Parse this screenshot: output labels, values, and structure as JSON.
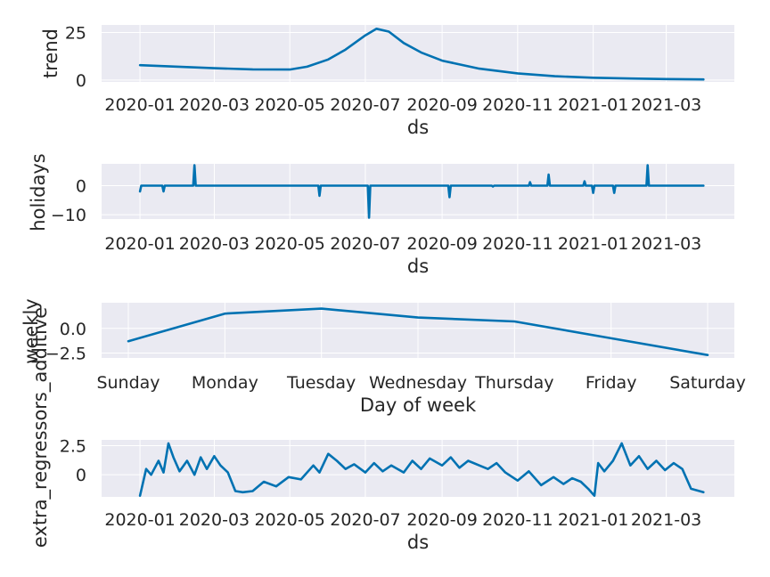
{
  "style": {
    "line_color": "#0072b2",
    "background": "#eaeaf2",
    "grid_color": "#ffffff"
  },
  "chart_data": [
    {
      "type": "line",
      "xlabel": "ds",
      "ylabel": "trend",
      "x_axis_type": "date",
      "xlim": [
        "2019-12-01",
        "2021-04-25"
      ],
      "ylim": [
        -1,
        29
      ],
      "xticks": [
        "2020-01",
        "2020-03",
        "2020-05",
        "2020-07",
        "2020-09",
        "2020-11",
        "2021-01",
        "2021-03"
      ],
      "yticks": [
        0,
        25
      ],
      "grid": true,
      "x": [
        "2020-01-01",
        "2020-02-01",
        "2020-03-01",
        "2020-04-01",
        "2020-05-01",
        "2020-05-15",
        "2020-06-01",
        "2020-06-15",
        "2020-07-01",
        "2020-07-10",
        "2020-07-20",
        "2020-08-01",
        "2020-08-15",
        "2020-09-01",
        "2020-10-01",
        "2020-11-01",
        "2020-12-01",
        "2021-01-01",
        "2021-02-01",
        "2021-03-01",
        "2021-03-31"
      ],
      "y": [
        7.8,
        7.0,
        6.2,
        5.6,
        5.5,
        7.0,
        10.8,
        16.0,
        23.5,
        27.0,
        25.5,
        19.5,
        14.5,
        10.2,
        6.0,
        3.5,
        2.0,
        1.2,
        0.8,
        0.5,
        0.3
      ]
    },
    {
      "type": "line",
      "xlabel": "ds",
      "ylabel": "holidays",
      "x_axis_type": "date",
      "xlim": [
        "2019-12-01",
        "2021-04-25"
      ],
      "ylim": [
        -11.5,
        7.5
      ],
      "xticks": [
        "2020-01",
        "2020-03",
        "2020-05",
        "2020-07",
        "2020-09",
        "2020-11",
        "2021-01",
        "2021-03"
      ],
      "yticks": [
        0,
        -10
      ],
      "ytick_labels": [
        "0",
        "−10"
      ],
      "grid": true,
      "x": [
        "2020-01-01",
        "2020-01-02",
        "2020-01-03",
        "2020-01-19",
        "2020-01-20",
        "2020-01-21",
        "2020-02-13",
        "2020-02-14",
        "2020-02-15",
        "2020-05-24",
        "2020-05-25",
        "2020-05-26",
        "2020-07-03",
        "2020-07-04",
        "2020-07-05",
        "2020-09-06",
        "2020-09-07",
        "2020-09-08",
        "2020-10-11",
        "2020-10-12",
        "2020-10-13",
        "2020-11-10",
        "2020-11-11",
        "2020-11-12",
        "2020-11-25",
        "2020-11-26",
        "2020-11-27",
        "2020-12-24",
        "2020-12-25",
        "2020-12-26",
        "2020-12-31",
        "2021-01-01",
        "2021-01-02",
        "2021-01-17",
        "2021-01-18",
        "2021-01-19",
        "2021-02-13",
        "2021-02-14",
        "2021-02-15",
        "2021-03-31"
      ],
      "y": [
        -2.0,
        0,
        0,
        0,
        -2.0,
        0,
        0,
        7.0,
        0,
        0,
        -3.5,
        0,
        0,
        -11.0,
        0,
        0,
        -4.0,
        0,
        0,
        -0.3,
        0,
        0,
        1.2,
        0,
        0,
        3.8,
        0,
        0,
        1.5,
        0,
        0,
        -2.5,
        0,
        0,
        -2.5,
        0,
        0,
        7.0,
        0,
        0
      ]
    },
    {
      "type": "line",
      "xlabel": "Day of week",
      "ylabel": "weekly",
      "categories": [
        "Sunday",
        "Monday",
        "Tuesday",
        "Wednesday",
        "Thursday",
        "Friday",
        "Saturday"
      ],
      "values": [
        -1.3,
        1.5,
        2.0,
        1.1,
        0.7,
        -1.0,
        -2.7
      ],
      "ylim": [
        -3.0,
        2.6
      ],
      "yticks": [
        0.0,
        -2.5
      ],
      "ytick_labels": [
        "0.0",
        "−2.5"
      ],
      "grid": true
    },
    {
      "type": "line",
      "xlabel": "ds",
      "ylabel": "extra_regressors_additive",
      "x_axis_type": "date",
      "xlim": [
        "2019-12-01",
        "2021-04-25"
      ],
      "ylim": [
        -1.9,
        3.0
      ],
      "xticks": [
        "2020-01",
        "2020-03",
        "2020-05",
        "2020-07",
        "2020-09",
        "2020-11",
        "2021-01",
        "2021-03"
      ],
      "yticks": [
        2.5,
        0.0
      ],
      "grid": true,
      "x": [
        "2020-01-01",
        "2020-01-06",
        "2020-01-10",
        "2020-01-16",
        "2020-01-20",
        "2020-01-24",
        "2020-01-28",
        "2020-02-02",
        "2020-02-08",
        "2020-02-14",
        "2020-02-19",
        "2020-02-24",
        "2020-03-01",
        "2020-03-06",
        "2020-03-12",
        "2020-03-18",
        "2020-03-24",
        "2020-04-01",
        "2020-04-10",
        "2020-04-20",
        "2020-04-30",
        "2020-05-10",
        "2020-05-20",
        "2020-05-25",
        "2020-06-01",
        "2020-06-08",
        "2020-06-15",
        "2020-06-22",
        "2020-07-01",
        "2020-07-08",
        "2020-07-15",
        "2020-07-22",
        "2020-08-01",
        "2020-08-08",
        "2020-08-15",
        "2020-08-22",
        "2020-09-01",
        "2020-09-08",
        "2020-09-15",
        "2020-09-22",
        "2020-10-01",
        "2020-10-08",
        "2020-10-15",
        "2020-10-22",
        "2020-11-01",
        "2020-11-10",
        "2020-11-20",
        "2020-11-30",
        "2020-12-08",
        "2020-12-15",
        "2020-12-22",
        "2020-12-28",
        "2021-01-02",
        "2021-01-05",
        "2021-01-10",
        "2021-01-17",
        "2021-01-24",
        "2021-01-31",
        "2021-02-07",
        "2021-02-14",
        "2021-02-21",
        "2021-02-28",
        "2021-03-07",
        "2021-03-14",
        "2021-03-21",
        "2021-03-31"
      ],
      "y": [
        -1.8,
        0.5,
        0.0,
        1.2,
        0.2,
        2.7,
        1.5,
        0.3,
        1.2,
        0.0,
        1.5,
        0.5,
        1.6,
        0.8,
        0.2,
        -1.4,
        -1.5,
        -1.4,
        -0.6,
        -1.0,
        -0.2,
        -0.4,
        0.8,
        0.2,
        1.8,
        1.2,
        0.5,
        0.9,
        0.2,
        1.0,
        0.3,
        0.8,
        0.2,
        1.2,
        0.5,
        1.4,
        0.8,
        1.5,
        0.6,
        1.2,
        0.8,
        0.5,
        1.0,
        0.2,
        -0.5,
        0.3,
        -0.9,
        -0.2,
        -0.8,
        -0.3,
        -0.6,
        -1.2,
        -1.8,
        1.0,
        0.3,
        1.2,
        2.7,
        0.8,
        1.6,
        0.5,
        1.2,
        0.4,
        1.0,
        0.5,
        -1.2,
        -1.5
      ]
    }
  ]
}
